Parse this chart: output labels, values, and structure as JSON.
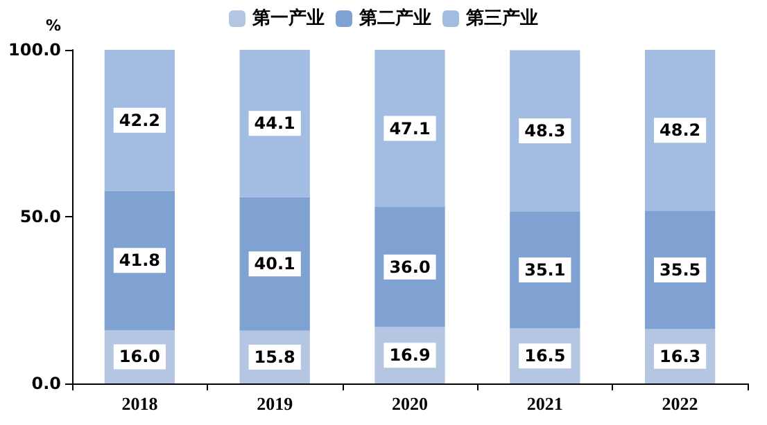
{
  "chart_data": {
    "type": "bar",
    "stacked": true,
    "ylabel": "%",
    "categories": [
      "2018",
      "2019",
      "2020",
      "2021",
      "2022"
    ],
    "series": [
      {
        "name": "第一产业",
        "color": "#b4c6e2",
        "values": [
          16.0,
          15.8,
          16.9,
          16.5,
          16.3
        ],
        "value_labels": [
          "16.0",
          "15.8",
          "16.9",
          "16.5",
          "16.3"
        ]
      },
      {
        "name": "第二产业",
        "color": "#7fa2d2",
        "values": [
          41.8,
          40.1,
          36.0,
          35.1,
          35.5
        ],
        "value_labels": [
          "41.8",
          "40.1",
          "36.0",
          "35.1",
          "35.5"
        ]
      },
      {
        "name": "第三产业",
        "color": "#a3bde2",
        "values": [
          42.2,
          44.1,
          47.1,
          48.3,
          48.2
        ],
        "value_labels": [
          "42.2",
          "44.1",
          "47.1",
          "48.3",
          "48.2"
        ]
      }
    ],
    "ylim": [
      0,
      100
    ],
    "yticks": [
      {
        "value": 0,
        "label": "0.0"
      },
      {
        "value": 50,
        "label": "50.0"
      },
      {
        "value": 100,
        "label": "100.0"
      }
    ],
    "grid": false,
    "legend": "top"
  }
}
